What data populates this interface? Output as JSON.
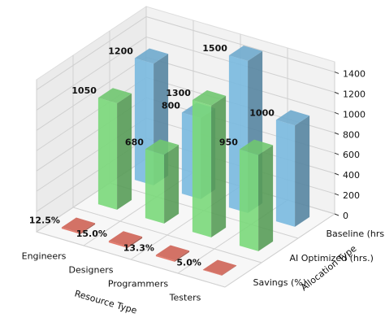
{
  "chart_data": {
    "type": "bar3d",
    "categories": [
      "Engineers",
      "Designers",
      "Programmers",
      "Testers"
    ],
    "series": [
      {
        "name": "Savings (%)",
        "color": "#e06c5c",
        "values": [
          12.5,
          15.0,
          13.3,
          5.0
        ],
        "value_labels": [
          "12.5%",
          "15.0%",
          "13.3%",
          "5.0%"
        ]
      },
      {
        "name": "AI Optimized (hrs.)",
        "color": "#7ad87a",
        "values": [
          1050,
          680,
          1300,
          950
        ]
      },
      {
        "name": "Baseline (hrs.)",
        "color": "#79b9df",
        "values": [
          1200,
          800,
          1500,
          1000
        ]
      }
    ],
    "xlabel": "Resource Type",
    "ylabel": "Allocation Type",
    "zlim": [
      0,
      1500
    ],
    "zticks": [
      0,
      200,
      400,
      600,
      800,
      1000,
      1200,
      1400
    ],
    "grid": true
  }
}
